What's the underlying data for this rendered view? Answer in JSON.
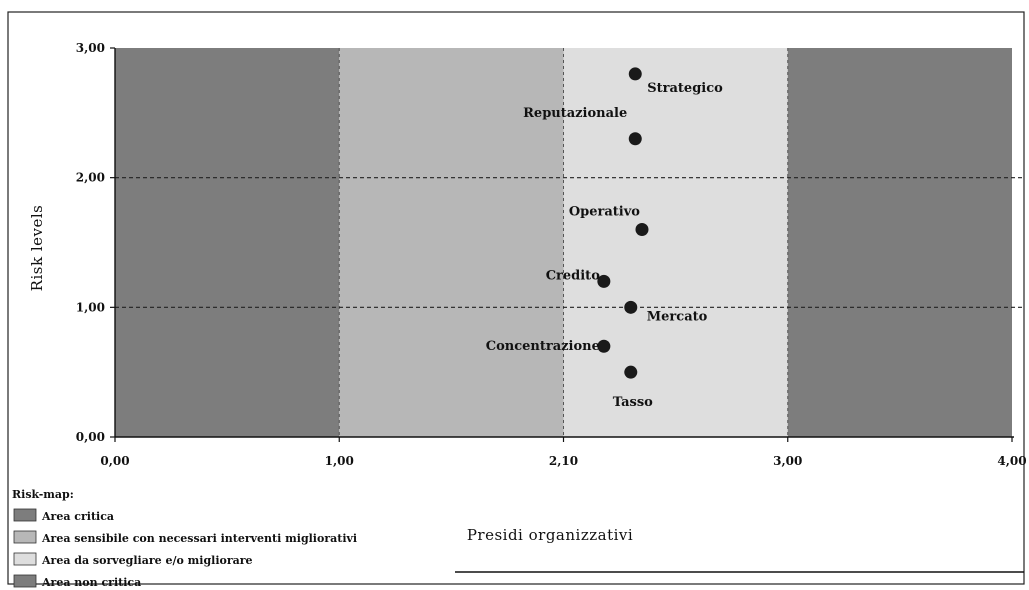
{
  "chart_data": {
    "type": "scatter",
    "xlabel": "Presidi organizzativi",
    "ylabel": "Risk levels",
    "xlim": [
      0,
      4
    ],
    "ylim": [
      0,
      3
    ],
    "x_ticks": [
      "0,00",
      "1,00",
      "2,10",
      "3,00",
      "4,00"
    ],
    "y_ticks": [
      "0,00",
      "1,00",
      "2,00",
      "3,00"
    ],
    "zones": [
      {
        "from": 0,
        "to": 1,
        "color": "#7d7d7d",
        "legend": "Area critica"
      },
      {
        "from": 1,
        "to": 2,
        "color": "#b7b7b7",
        "legend": "Area sensibile con necessari interventi migliorativi"
      },
      {
        "from": 2,
        "to": 3,
        "color": "#dedede",
        "legend": "Area da sorvegliare e/o migliorare"
      },
      {
        "from": 3,
        "to": 4,
        "color": "#7d7d7d",
        "legend": "Area non critica"
      }
    ],
    "h_lines": [
      1,
      2
    ],
    "points": [
      {
        "label": "Strategico",
        "x": 2.32,
        "y": 2.8
      },
      {
        "label": "Reputazionale",
        "x": 2.32,
        "y": 2.3
      },
      {
        "label": "Operativo",
        "x": 2.35,
        "y": 1.6
      },
      {
        "label": "Credito",
        "x": 2.18,
        "y": 1.2
      },
      {
        "label": "Mercato",
        "x": 2.3,
        "y": 1.0
      },
      {
        "label": "Concentrazione",
        "x": 2.18,
        "y": 0.7
      },
      {
        "label": "Tasso",
        "x": 2.3,
        "y": 0.5
      }
    ],
    "legend_title": "Risk-map:",
    "legend_position": "bottom-left"
  }
}
